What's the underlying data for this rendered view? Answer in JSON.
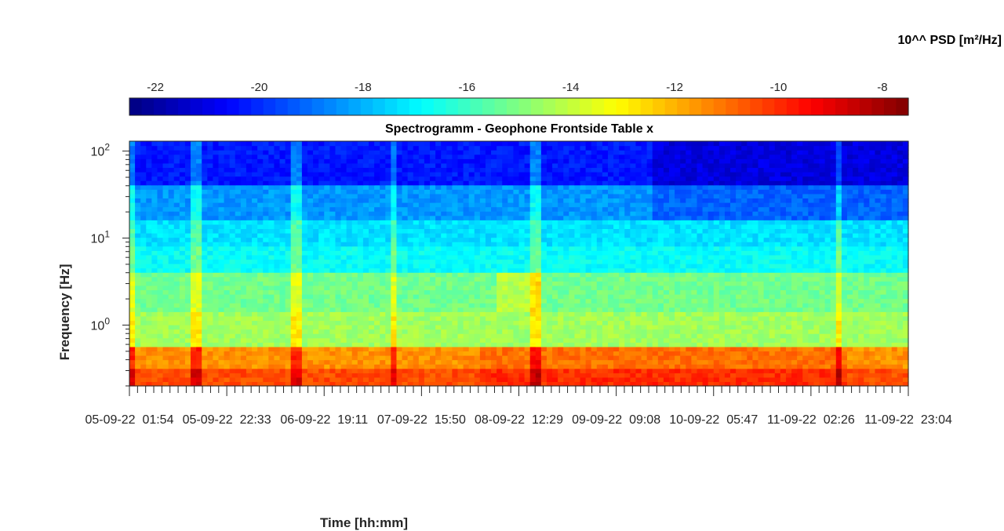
{
  "chart_data": {
    "type": "heatmap",
    "title": "Spectrogramm - Geophone Frontside Table x",
    "xlabel": "Time [hh:mm]",
    "ylabel": "Frequency [Hz]",
    "colorbar_label": "10^^ PSD [m²/Hz]",
    "colorbar": {
      "location": "top",
      "range": [
        -22.5,
        -7.5
      ],
      "ticks": [
        -22,
        -20,
        -18,
        -16,
        -14,
        -12,
        -10,
        -8
      ],
      "tick_labels": [
        "-22",
        "-20",
        "-18",
        "-16",
        "-14",
        "-12",
        "-10",
        "-8"
      ],
      "colormap": "jet"
    },
    "y_scale": "log",
    "ylim": [
      0.2,
      130
    ],
    "y_ticks": [
      1,
      10,
      100
    ],
    "y_tick_labels": [
      {
        "base": "10",
        "exp": "0"
      },
      {
        "base": "10",
        "exp": "1"
      },
      {
        "base": "10",
        "exp": "2"
      }
    ],
    "x_tick_labels": [
      "05-09-22  01:54",
      "05-09-22  22:33",
      "06-09-22  19:11",
      "07-09-22  15:50",
      "08-09-22  12:29",
      "09-09-22  09:08",
      "10-09-22  05:47",
      "11-09-22  02:26",
      "11-09-22  23:04"
    ],
    "frequency_bands_log10_psd": [
      {
        "f_low": 0.2,
        "f_high": 0.3,
        "log10_psd": -10.5
      },
      {
        "f_low": 0.3,
        "f_high": 0.6,
        "log10_psd": -11.5
      },
      {
        "f_low": 0.6,
        "f_high": 1.5,
        "log10_psd": -14.5
      },
      {
        "f_low": 1.5,
        "f_high": 4,
        "log10_psd": -15.2
      },
      {
        "f_low": 4,
        "f_high": 8,
        "log10_psd": -16.8
      },
      {
        "f_low": 8,
        "f_high": 17,
        "log10_psd": -17.3
      },
      {
        "f_low": 17,
        "f_high": 40,
        "log10_psd": -18.4
      },
      {
        "f_low": 40,
        "f_high": 130,
        "log10_psd": -20.3
      }
    ],
    "transient_events_time_fraction": [
      0.0,
      0.085,
      0.216,
      0.34,
      0.52,
      0.91
    ],
    "grid": false,
    "colors": {
      "axis": "#262626",
      "background": "#ffffff"
    }
  }
}
